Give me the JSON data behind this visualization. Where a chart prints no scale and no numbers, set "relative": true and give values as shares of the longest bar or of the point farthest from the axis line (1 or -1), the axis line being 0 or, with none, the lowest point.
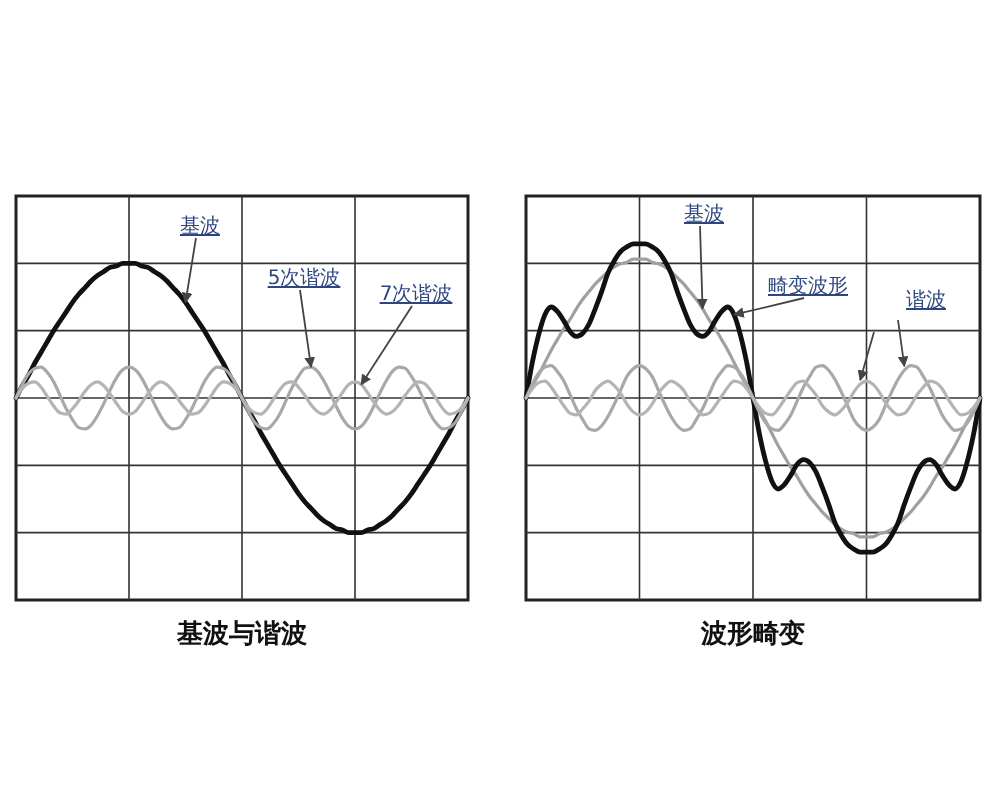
{
  "chart_data": [
    {
      "type": "line",
      "title": "基波与谐波",
      "relative": true,
      "grid": true,
      "categories": [
        null,
        null,
        null,
        null,
        null,
        null,
        null,
        null,
        null,
        null,
        null,
        null,
        null,
        null,
        null,
        null,
        null,
        null,
        null,
        null,
        null,
        null,
        null,
        null,
        null,
        null,
        null,
        null,
        null,
        null,
        null,
        null,
        null,
        null,
        null,
        null,
        null,
        null,
        null,
        null,
        null,
        null,
        null,
        null,
        null,
        null,
        null,
        null,
        null,
        null,
        null,
        null,
        null,
        null,
        null,
        null,
        null,
        null,
        null,
        null,
        null,
        null,
        null,
        null,
        null,
        null,
        null,
        null,
        null,
        null,
        null,
        null,
        null
      ],
      "series": [
        {
          "name": "基波",
          "color": "#111111",
          "values": [
            0,
            0.09,
            0.17,
            0.26,
            0.34,
            0.42,
            0.5,
            0.57,
            0.64,
            0.71,
            0.77,
            0.82,
            0.87,
            0.91,
            0.94,
            0.97,
            0.98,
            1,
            1,
            1,
            0.98,
            0.97,
            0.94,
            0.91,
            0.87,
            0.82,
            0.77,
            0.71,
            0.64,
            0.57,
            0.5,
            0.42,
            0.34,
            0.26,
            0.17,
            0.09,
            0,
            -0.09,
            -0.17,
            -0.26,
            -0.34,
            -0.42,
            -0.5,
            -0.57,
            -0.64,
            -0.71,
            -0.77,
            -0.82,
            -0.87,
            -0.91,
            -0.94,
            -0.97,
            -0.98,
            -1,
            -1,
            -1,
            -0.98,
            -0.97,
            -0.94,
            -0.91,
            -0.87,
            -0.82,
            -0.77,
            -0.71,
            -0.64,
            -0.57,
            -0.5,
            -0.42,
            -0.34,
            -0.26,
            -0.17,
            -0.09,
            0
          ]
        },
        {
          "name": "5次谐波",
          "color": "#a8a8a8",
          "values": [
            0,
            0.1,
            0.18,
            0.22,
            0.23,
            0.19,
            0.12,
            0.02,
            -0.08,
            -0.16,
            -0.22,
            -0.23,
            -0.2,
            -0.13,
            -0.04,
            0.06,
            0.15,
            0.21,
            0.23,
            0.21,
            0.15,
            0.06,
            -0.04,
            -0.13,
            -0.2,
            -0.23,
            -0.22,
            -0.16,
            -0.08,
            0.02,
            0.12,
            0.19,
            0.23,
            0.22,
            0.18,
            0.1,
            0,
            -0.1,
            -0.18,
            -0.22,
            -0.23,
            -0.19,
            -0.12,
            -0.02,
            0.08,
            0.16,
            0.22,
            0.23,
            0.2,
            0.13,
            0.04,
            -0.06,
            -0.15,
            -0.21,
            -0.23,
            -0.21,
            -0.15,
            -0.06,
            0.04,
            0.13,
            0.2,
            0.23,
            0.22,
            0.16,
            0.08,
            -0.02,
            -0.12,
            -0.19,
            -0.23,
            -0.22,
            -0.18,
            -0.1,
            0
          ]
        },
        {
          "name": "7次谐波",
          "color": "#b4b4b4",
          "values": [
            0,
            0.07,
            0.11,
            0.12,
            0.08,
            0.01,
            -0.06,
            -0.11,
            -0.12,
            -0.08,
            -0.02,
            0.05,
            0.1,
            0.12,
            0.09,
            0.03,
            -0.04,
            -0.1,
            -0.12,
            -0.1,
            -0.04,
            0.03,
            0.09,
            0.12,
            0.1,
            0.05,
            -0.02,
            -0.08,
            -0.12,
            -0.11,
            -0.06,
            0.01,
            0.08,
            0.12,
            0.11,
            0.07,
            0,
            -0.07,
            -0.11,
            -0.12,
            -0.08,
            -0.01,
            0.06,
            0.11,
            0.12,
            0.08,
            0.02,
            -0.05,
            -0.1,
            -0.12,
            -0.09,
            -0.03,
            0.04,
            0.1,
            0.12,
            0.1,
            0.04,
            -0.03,
            -0.09,
            -0.12,
            -0.1,
            -0.05,
            0.02,
            0.08,
            0.12,
            0.11,
            0.06,
            -0.01,
            -0.08,
            -0.12,
            -0.11,
            -0.07,
            0
          ]
        }
      ]
    },
    {
      "type": "line",
      "title": "波形畸变",
      "relative": true,
      "grid": true,
      "annotations": [
        "谐波"
      ],
      "categories": [
        null,
        null,
        null,
        null,
        null,
        null,
        null,
        null,
        null,
        null,
        null,
        null,
        null,
        null,
        null,
        null,
        null,
        null,
        null,
        null,
        null,
        null,
        null,
        null,
        null,
        null,
        null,
        null,
        null,
        null,
        null,
        null,
        null,
        null,
        null,
        null,
        null,
        null,
        null,
        null,
        null,
        null,
        null,
        null,
        null,
        null,
        null,
        null,
        null,
        null,
        null,
        null,
        null,
        null,
        null,
        null,
        null,
        null,
        null,
        null,
        null,
        null,
        null,
        null,
        null,
        null,
        null,
        null,
        null,
        null,
        null,
        null,
        null
      ],
      "series": [
        {
          "name": "基波",
          "color": "#a0a0a0",
          "values": [
            0,
            0.08,
            0.15,
            0.23,
            0.31,
            0.38,
            0.45,
            0.51,
            0.58,
            0.64,
            0.69,
            0.74,
            0.78,
            0.82,
            0.85,
            0.87,
            0.88,
            0.9,
            0.9,
            0.9,
            0.88,
            0.87,
            0.85,
            0.82,
            0.78,
            0.74,
            0.69,
            0.64,
            0.58,
            0.51,
            0.45,
            0.38,
            0.31,
            0.23,
            0.15,
            0.08,
            0,
            -0.08,
            -0.15,
            -0.23,
            -0.31,
            -0.38,
            -0.45,
            -0.51,
            -0.58,
            -0.64,
            -0.69,
            -0.74,
            -0.78,
            -0.82,
            -0.85,
            -0.87,
            -0.88,
            -0.9,
            -0.9,
            -0.9,
            -0.88,
            -0.87,
            -0.85,
            -0.82,
            -0.78,
            -0.74,
            -0.69,
            -0.64,
            -0.58,
            -0.51,
            -0.45,
            -0.38,
            -0.31,
            -0.23,
            -0.15,
            -0.08,
            0
          ]
        },
        {
          "name": "畸变波形",
          "color": "#111111",
          "values": [
            0,
            0.23,
            0.41,
            0.54,
            0.59,
            0.56,
            0.5,
            0.43,
            0.4,
            0.42,
            0.48,
            0.58,
            0.69,
            0.81,
            0.89,
            0.95,
            0.98,
            1,
            1,
            1,
            0.98,
            0.95,
            0.89,
            0.81,
            0.69,
            0.58,
            0.48,
            0.42,
            0.4,
            0.43,
            0.5,
            0.56,
            0.59,
            0.54,
            0.41,
            0.23,
            0,
            -0.23,
            -0.41,
            -0.54,
            -0.59,
            -0.56,
            -0.5,
            -0.43,
            -0.4,
            -0.42,
            -0.48,
            -0.58,
            -0.69,
            -0.81,
            -0.89,
            -0.95,
            -0.98,
            -1,
            -1,
            -1,
            -0.98,
            -0.95,
            -0.89,
            -0.81,
            -0.69,
            -0.58,
            -0.48,
            -0.42,
            -0.4,
            -0.43,
            -0.5,
            -0.56,
            -0.59,
            -0.54,
            -0.41,
            -0.23,
            0
          ]
        },
        {
          "color": "#a8a8a8",
          "values": [
            0,
            0.09,
            0.16,
            0.2,
            0.21,
            0.17,
            0.11,
            0.02,
            -0.07,
            -0.14,
            -0.2,
            -0.21,
            -0.18,
            -0.12,
            -0.04,
            0.05,
            0.14,
            0.19,
            0.21,
            0.19,
            0.14,
            0.05,
            -0.04,
            -0.12,
            -0.18,
            -0.21,
            -0.2,
            -0.14,
            -0.07,
            0.02,
            0.11,
            0.17,
            0.21,
            0.2,
            0.16,
            0.09,
            0,
            -0.09,
            -0.16,
            -0.2,
            -0.21,
            -0.17,
            -0.11,
            -0.02,
            0.07,
            0.14,
            0.2,
            0.21,
            0.18,
            0.12,
            0.04,
            -0.05,
            -0.14,
            -0.19,
            -0.21,
            -0.19,
            -0.14,
            -0.05,
            0.04,
            0.12,
            0.18,
            0.21,
            0.2,
            0.14,
            0.07,
            -0.02,
            -0.11,
            -0.17,
            -0.21,
            -0.2,
            -0.16,
            -0.09,
            0
          ]
        },
        {
          "color": "#b4b4b4",
          "values": [
            0,
            0.06,
            0.1,
            0.11,
            0.07,
            0.01,
            -0.05,
            -0.1,
            -0.11,
            -0.07,
            -0.02,
            0.05,
            0.09,
            0.11,
            0.08,
            0.03,
            -0.04,
            -0.09,
            -0.11,
            -0.09,
            -0.04,
            0.03,
            0.08,
            0.11,
            0.09,
            0.05,
            -0.02,
            -0.07,
            -0.11,
            -0.1,
            -0.05,
            0.01,
            0.07,
            0.11,
            0.1,
            0.06,
            0,
            -0.06,
            -0.1,
            -0.11,
            -0.07,
            -0.01,
            0.05,
            0.1,
            0.11,
            0.07,
            0.02,
            -0.05,
            -0.09,
            -0.11,
            -0.08,
            -0.03,
            0.04,
            0.09,
            0.11,
            0.09,
            0.04,
            -0.03,
            -0.08,
            -0.11,
            -0.1,
            -0.05,
            0.02,
            0.07,
            0.11,
            0.1,
            0.06,
            -0.01,
            -0.07,
            -0.11,
            -0.1,
            -0.06,
            0
          ]
        }
      ]
    }
  ]
}
